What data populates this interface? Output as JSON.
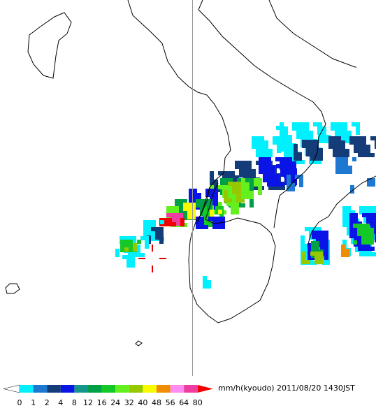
{
  "legend": {
    "ticks": [
      0,
      1,
      2,
      4,
      8,
      12,
      16,
      24,
      32,
      40,
      48,
      56,
      64,
      80
    ],
    "colors": [
      "#00f0ff",
      "#1e78d2",
      "#143c78",
      "#0a14e6",
      "#14968c",
      "#00a046",
      "#14c828",
      "#64f01e",
      "#96c800",
      "#fafa00",
      "#f08c00",
      "#ff8cf0",
      "#f03ca0"
    ],
    "over_color": "#f00000",
    "under_color": "#ffffff",
    "unit": "mm/h(kyoudo)"
  },
  "timestamp": "2011/08/20 1430JST"
}
